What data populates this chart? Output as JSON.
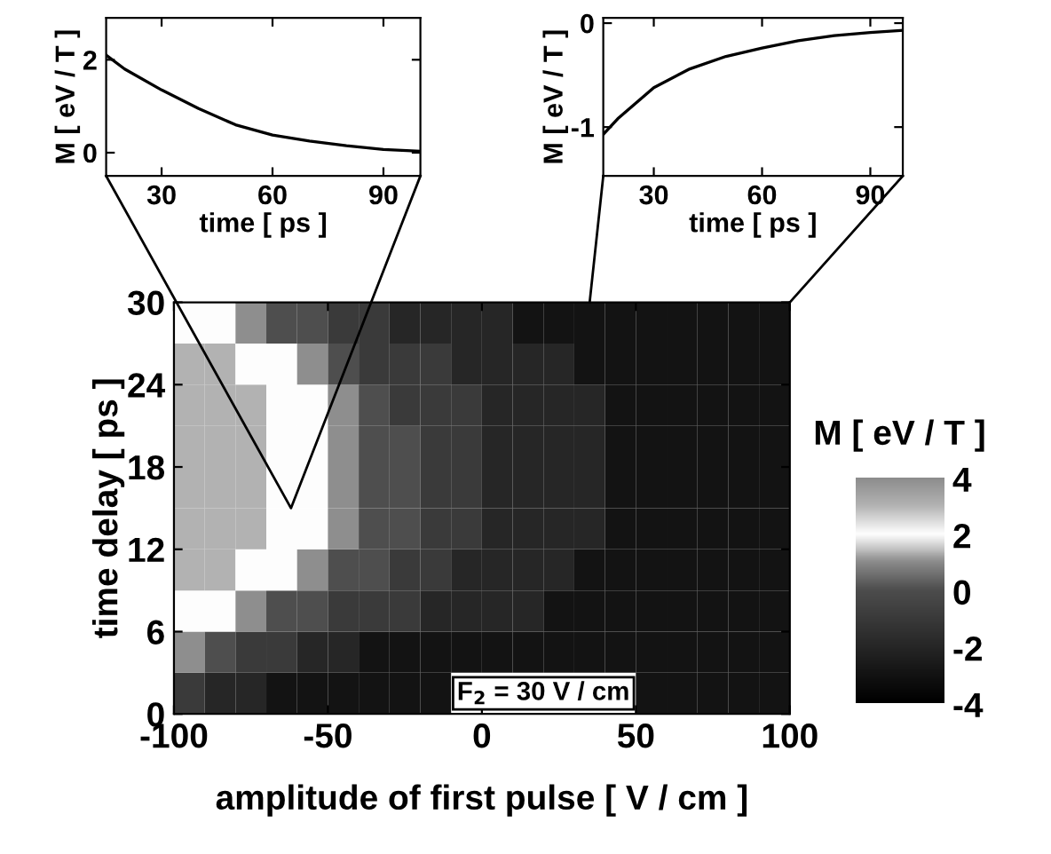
{
  "chart_data": [
    {
      "type": "line",
      "xlabel": "time [ ps ]",
      "ylabel": "M [ eV / T ]",
      "xlim": [
        15,
        100
      ],
      "ylim": [
        -0.5,
        2.9
      ],
      "xticks": [
        30,
        60,
        90
      ],
      "yticks": [
        0,
        2
      ],
      "grid": false,
      "series": [
        {
          "color": "#000000",
          "x": [
            15,
            20,
            30,
            40,
            50,
            60,
            70,
            80,
            90,
            100
          ],
          "values": [
            2.1,
            1.8,
            1.35,
            0.95,
            0.6,
            0.38,
            0.25,
            0.15,
            0.07,
            0.03
          ]
        }
      ]
    },
    {
      "type": "line",
      "xlabel": "time [ ps ]",
      "ylabel": "M [ eV / T ]",
      "xlim": [
        16,
        99
      ],
      "ylim": [
        -1.47,
        0.05
      ],
      "xticks": [
        30,
        60,
        90
      ],
      "yticks": [
        -1,
        0
      ],
      "grid": false,
      "series": [
        {
          "color": "#000000",
          "x": [
            16,
            20,
            30,
            40,
            50,
            60,
            70,
            80,
            90,
            99
          ],
          "values": [
            -1.07,
            -0.92,
            -0.62,
            -0.44,
            -0.32,
            -0.24,
            -0.17,
            -0.12,
            -0.09,
            -0.07
          ]
        }
      ]
    },
    {
      "type": "heatmap",
      "xlabel": "amplitude of first pulse [ V / cm ]",
      "ylabel": "time delay [ ps ]",
      "clabel": "M [ eV / T ]",
      "xlim": [
        -100,
        100
      ],
      "ylim": [
        0,
        30
      ],
      "xticks": [
        -100,
        -50,
        0,
        50,
        100
      ],
      "yticks": [
        0,
        6,
        12,
        18,
        24,
        30
      ],
      "clim": [
        -4,
        4
      ],
      "cticks": [
        -4,
        -2,
        0,
        2,
        4
      ],
      "grid": false,
      "annotations": [
        "F$_{2}$ = 30 V / cm"
      ],
      "x": [
        -95,
        -85,
        -75,
        -65,
        -55,
        -45,
        -35,
        -25,
        -15,
        -5,
        5,
        15,
        25,
        35,
        45,
        55,
        65,
        75,
        85,
        95
      ],
      "y": [
        28.5,
        25.5,
        22.5,
        19.5,
        16.5,
        13.5,
        10.5,
        7.5,
        4.5,
        1.5
      ],
      "cells": [
        [
          2,
          2,
          1,
          0,
          0,
          -1,
          -1,
          -2,
          -2,
          -2,
          -2,
          -3,
          -3,
          -3,
          -3,
          -3,
          -3,
          -3,
          -3,
          -3
        ],
        [
          3,
          3,
          2,
          2,
          1,
          0,
          -1,
          -1,
          -1,
          -2,
          -2,
          -2,
          -2,
          -3,
          -3,
          -3,
          -3,
          -3,
          -3,
          -3
        ],
        [
          3,
          3,
          3,
          2,
          2,
          1,
          0,
          -1,
          -1,
          -1,
          -2,
          -2,
          -2,
          -2,
          -3,
          -3,
          -3,
          -3,
          -3,
          -3
        ],
        [
          3,
          3,
          3,
          2,
          2,
          1,
          0,
          0,
          -1,
          -1,
          -2,
          -2,
          -2,
          -2,
          -3,
          -3,
          -3,
          -3,
          -3,
          -3
        ],
        [
          3,
          3,
          3,
          2,
          2,
          1,
          0,
          0,
          -1,
          -1,
          -2,
          -2,
          -2,
          -2,
          -3,
          -3,
          -3,
          -3,
          -3,
          -3
        ],
        [
          3,
          3,
          3,
          2,
          2,
          1,
          0,
          0,
          -1,
          -1,
          -2,
          -2,
          -2,
          -2,
          -3,
          -3,
          -3,
          -3,
          -3,
          -3
        ],
        [
          3,
          3,
          2,
          2,
          1,
          0,
          0,
          -1,
          -1,
          -2,
          -2,
          -2,
          -2,
          -3,
          -3,
          -3,
          -3,
          -3,
          -3,
          -3
        ],
        [
          2,
          2,
          1,
          0,
          0,
          -1,
          -1,
          -1,
          -2,
          -2,
          -2,
          -2,
          -3,
          -3,
          -3,
          -3,
          -3,
          -3,
          -3,
          -3
        ],
        [
          1,
          0,
          -1,
          -1,
          -2,
          -2,
          -3,
          -3,
          -3,
          -3,
          -3,
          -3,
          -3,
          -3,
          -3,
          -3,
          -3,
          -3,
          -3,
          -3
        ],
        [
          -1,
          -2,
          -2,
          -3,
          -3,
          -3,
          -3,
          -3,
          -3,
          null,
          null,
          null,
          null,
          null,
          null,
          -3,
          -3,
          -3,
          -3,
          -3
        ]
      ]
    }
  ]
}
